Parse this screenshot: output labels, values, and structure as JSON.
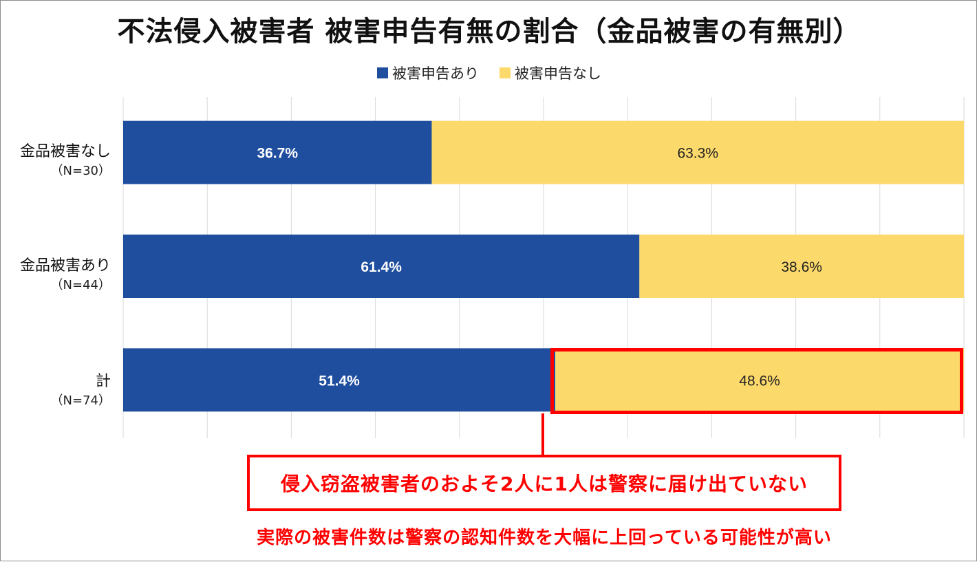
{
  "chart_data": {
    "type": "bar",
    "orientation": "horizontal",
    "stacked": true,
    "percent": true,
    "title": "不法侵入被害者 被害申告有無の割合（金品被害の有無別）",
    "categories": [
      {
        "label": "金品被害なし",
        "sublabel": "（N=30）"
      },
      {
        "label": "金品被害あり",
        "sublabel": "（N=44）"
      },
      {
        "label": "計",
        "sublabel": "（N=74）"
      }
    ],
    "series": [
      {
        "name": "被害申告あり",
        "color": "#1f4e9f",
        "label_color": "#ffffff",
        "values": [
          36.7,
          61.4,
          51.4
        ],
        "labels": [
          "36.7%",
          "61.4%",
          "51.4%"
        ]
      },
      {
        "name": "被害申告なし",
        "color": "#fcd96b",
        "label_color": "#222222",
        "values": [
          63.3,
          38.6,
          48.6
        ],
        "labels": [
          "63.3%",
          "38.6%",
          "48.6%"
        ]
      }
    ],
    "xlim": [
      0,
      100
    ],
    "grid": true,
    "legend_position": "top"
  },
  "annotations": {
    "callout": "侵入窃盗被害者のおよそ2人に1人は警察に届け出ていない",
    "note": "実際の被害件数は警察の認知件数を大幅に上回っている可能性が高い",
    "highlight_color": "#ff0000"
  }
}
